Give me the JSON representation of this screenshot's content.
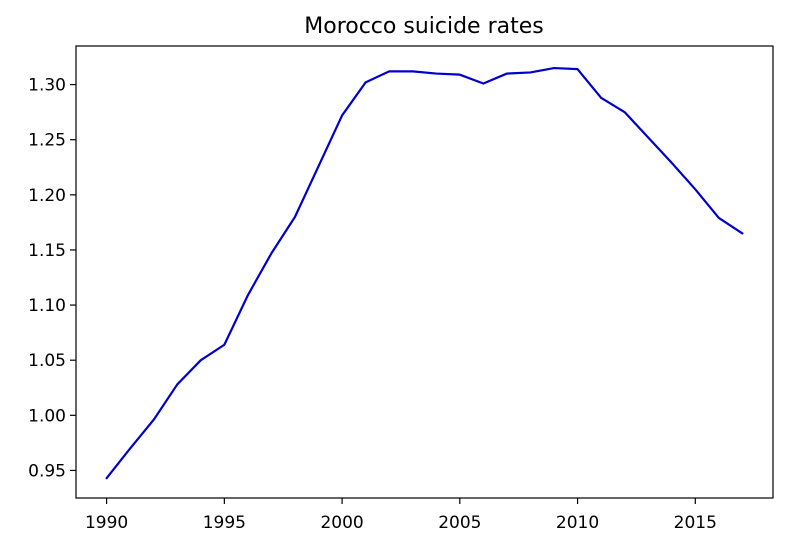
{
  "chart_data": {
    "type": "line",
    "title": "Morocco suicide rates",
    "xlabel": "",
    "ylabel": "",
    "xlim": [
      1988.7,
      2018.3
    ],
    "ylim": [
      0.925,
      1.335
    ],
    "grid": false,
    "legend": "none",
    "x_ticks": [
      1990,
      1995,
      2000,
      2005,
      2010,
      2015
    ],
    "x_tick_labels": [
      "1990",
      "1995",
      "2000",
      "2005",
      "2010",
      "2015"
    ],
    "y_ticks": [
      0.95,
      1.0,
      1.05,
      1.1,
      1.15,
      1.2,
      1.25,
      1.3
    ],
    "y_tick_labels": [
      "0.95",
      "1.00",
      "1.05",
      "1.10",
      "1.15",
      "1.20",
      "1.25",
      "1.30"
    ],
    "series": [
      {
        "color": "#0000cc",
        "x": [
          1990,
          1991,
          1992,
          1993,
          1994,
          1995,
          1996,
          1997,
          1998,
          1999,
          2000,
          2001,
          2002,
          2003,
          2004,
          2005,
          2006,
          2007,
          2008,
          2009,
          2010,
          2011,
          2012,
          2013,
          2014,
          2015,
          2016,
          2017
        ],
        "values": [
          0.943,
          0.97,
          0.996,
          1.028,
          1.05,
          1.064,
          1.109,
          1.147,
          1.18,
          1.226,
          1.272,
          1.302,
          1.312,
          1.312,
          1.31,
          1.309,
          1.301,
          1.31,
          1.311,
          1.315,
          1.314,
          1.288,
          1.275,
          1.252,
          1.229,
          1.205,
          1.179,
          1.165
        ]
      }
    ]
  }
}
